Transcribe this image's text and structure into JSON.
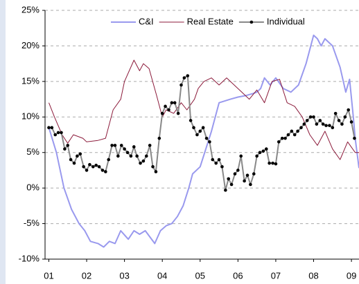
{
  "chart_data": {
    "type": "line",
    "xlim": [
      2000.9,
      2009.2
    ],
    "xticks": [
      {
        "value": 2001,
        "label": "01"
      },
      {
        "value": 2002,
        "label": "02"
      },
      {
        "value": 2003,
        "label": "03"
      },
      {
        "value": 2004,
        "label": "04"
      },
      {
        "value": 2005,
        "label": "05"
      },
      {
        "value": 2006,
        "label": "06"
      },
      {
        "value": 2007,
        "label": "07"
      },
      {
        "value": 2008,
        "label": "08"
      },
      {
        "value": 2009,
        "label": "09"
      }
    ],
    "ylim": [
      -10,
      25
    ],
    "yticks": [
      {
        "value": -10,
        "label": "-10%"
      },
      {
        "value": -5,
        "label": "-5%"
      },
      {
        "value": 0,
        "label": "0%"
      },
      {
        "value": 5,
        "label": "5%"
      },
      {
        "value": 10,
        "label": "10%"
      },
      {
        "value": 15,
        "label": "15%"
      },
      {
        "value": 20,
        "label": "20%"
      },
      {
        "value": 25,
        "label": "25%"
      }
    ],
    "grid": true,
    "legend": "top",
    "series": [
      {
        "name": "C&I",
        "color": "#9999ee",
        "x": [
          2001.0,
          2001.2,
          2001.4,
          2001.6,
          2001.8,
          2001.95,
          2002.1,
          2002.3,
          2002.45,
          2002.6,
          2002.75,
          2002.9,
          2003.1,
          2003.25,
          2003.4,
          2003.55,
          2003.8,
          2003.95,
          2004.1,
          2004.25,
          2004.4,
          2004.55,
          2004.7,
          2004.8,
          2005.0,
          2005.15,
          2005.3,
          2005.5,
          2005.8,
          2006.0,
          2006.2,
          2006.4,
          2006.5,
          2006.6,
          2006.7,
          2006.85,
          2007.0,
          2007.2,
          2007.4,
          2007.6,
          2007.8,
          2008.0,
          2008.1,
          2008.2,
          2008.3,
          2008.5,
          2008.7,
          2008.85,
          2008.95,
          2009.05,
          2009.1,
          2009.2
        ],
        "values": [
          8.5,
          5,
          0,
          -3,
          -5,
          -6,
          -7.5,
          -7.8,
          -8.3,
          -7.5,
          -7.8,
          -6,
          -7.2,
          -6,
          -6.5,
          -6,
          -7.8,
          -6,
          -5.3,
          -5,
          -4,
          -2.5,
          0,
          2,
          3,
          5.5,
          8,
          12,
          12.5,
          12.8,
          13,
          13.3,
          13.5,
          14,
          15.5,
          14.5,
          15.5,
          14,
          13.5,
          14.5,
          17.5,
          21.5,
          21,
          20,
          21,
          20,
          17,
          13.5,
          15.3,
          10,
          7,
          2.8
        ]
      },
      {
        "name": "Real Estate",
        "color": "#8b1a3a",
        "x": [
          2001.0,
          2001.15,
          2001.35,
          2001.5,
          2001.65,
          2001.9,
          2002.0,
          2002.3,
          2002.5,
          2002.7,
          2002.9,
          2003.0,
          2003.25,
          2003.4,
          2003.5,
          2003.65,
          2003.85,
          2004.0,
          2004.1,
          2004.3,
          2004.5,
          2004.65,
          2004.85,
          2004.95,
          2005.1,
          2005.3,
          2005.5,
          2005.7,
          2005.9,
          2006.1,
          2006.3,
          2006.5,
          2006.7,
          2006.9,
          2007.1,
          2007.3,
          2007.5,
          2007.7,
          2007.9,
          2008.1,
          2008.3,
          2008.5,
          2008.7,
          2008.9,
          2009.1,
          2009.2
        ],
        "values": [
          12,
          10,
          7.5,
          6.3,
          7.5,
          7,
          6.5,
          6.7,
          7,
          11,
          12.5,
          15,
          18,
          16.5,
          17.5,
          16.8,
          13,
          10,
          11,
          10.5,
          12,
          11,
          12.5,
          14,
          15,
          15.5,
          14.5,
          15.5,
          14.5,
          13.5,
          12.5,
          13.8,
          12,
          15,
          15.3,
          12,
          11.5,
          10,
          7.5,
          6,
          8,
          5.5,
          4,
          6.5,
          5,
          5
        ]
      },
      {
        "name": "Individual",
        "color": "#888888",
        "marker_color": "#000000",
        "x": [
          2001.0,
          2001.08,
          2001.17,
          2001.25,
          2001.33,
          2001.42,
          2001.5,
          2001.58,
          2001.67,
          2001.75,
          2001.83,
          2001.92,
          2002.0,
          2002.08,
          2002.17,
          2002.25,
          2002.33,
          2002.42,
          2002.5,
          2002.58,
          2002.67,
          2002.75,
          2002.83,
          2002.92,
          2003.0,
          2003.08,
          2003.17,
          2003.25,
          2003.33,
          2003.42,
          2003.5,
          2003.58,
          2003.67,
          2003.75,
          2003.83,
          2003.92,
          2004.0,
          2004.08,
          2004.17,
          2004.25,
          2004.33,
          2004.42,
          2004.5,
          2004.58,
          2004.67,
          2004.75,
          2004.83,
          2004.92,
          2005.0,
          2005.08,
          2005.17,
          2005.25,
          2005.33,
          2005.42,
          2005.5,
          2005.58,
          2005.67,
          2005.75,
          2005.83,
          2005.92,
          2006.0,
          2006.08,
          2006.17,
          2006.25,
          2006.33,
          2006.42,
          2006.5,
          2006.58,
          2006.67,
          2006.75,
          2006.83,
          2006.92,
          2007.0,
          2007.08,
          2007.17,
          2007.25,
          2007.33,
          2007.42,
          2007.5,
          2007.58,
          2007.67,
          2007.75,
          2007.83,
          2007.92,
          2008.0,
          2008.08,
          2008.17,
          2008.25,
          2008.33,
          2008.42,
          2008.5,
          2008.58,
          2008.67,
          2008.75,
          2008.83,
          2008.92,
          2009.0,
          2009.08
        ],
        "values": [
          8.5,
          8.5,
          7.5,
          7.8,
          7.8,
          5.5,
          6,
          4,
          3.5,
          4.5,
          4.8,
          3,
          2.5,
          3.3,
          3,
          3.2,
          3,
          2.5,
          2.3,
          4,
          6,
          6,
          4.5,
          6,
          5.5,
          5,
          4.5,
          5.8,
          4.5,
          3.5,
          3.8,
          4.5,
          6,
          3,
          2.3,
          7,
          10.5,
          11.5,
          11,
          12,
          12,
          10.5,
          14.5,
          15.5,
          15.8,
          9.5,
          8.5,
          7.5,
          8,
          8.5,
          7,
          6.5,
          4,
          3.5,
          4,
          3,
          -0.3,
          1.3,
          0.5,
          2,
          2.5,
          4.5,
          1,
          1.8,
          0.5,
          2,
          4.5,
          5,
          5.2,
          5.5,
          3.5,
          3.5,
          3.4,
          6.5,
          7,
          7,
          7.5,
          8,
          7.5,
          8,
          8.5,
          9,
          9.5,
          10,
          10,
          9,
          9.5,
          9,
          8.8,
          8.8,
          8.5,
          10.5,
          9.5,
          9,
          10,
          11,
          9.3,
          7
        ]
      }
    ]
  }
}
